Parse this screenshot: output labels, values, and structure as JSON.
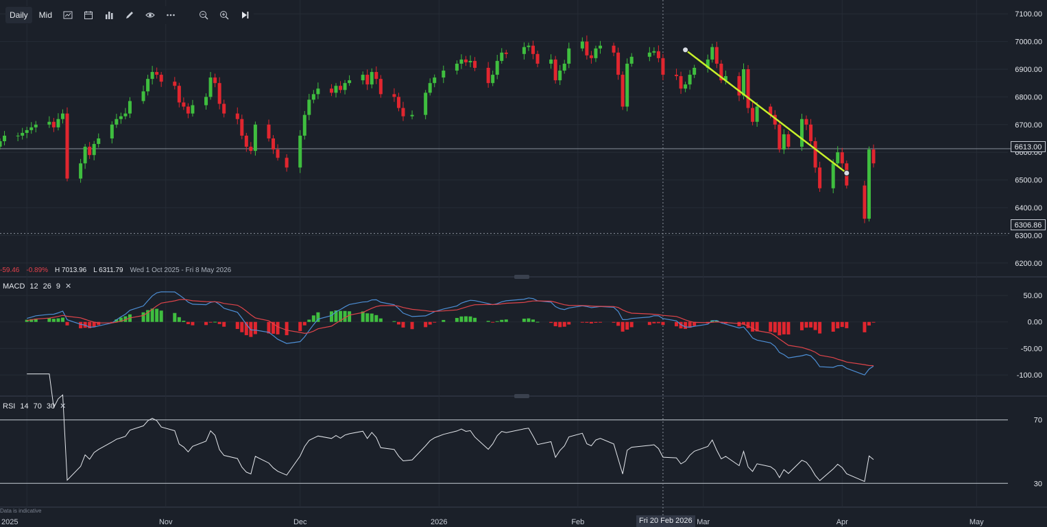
{
  "toolbar": {
    "interval_label": "Daily",
    "price_type_label": "Mid",
    "icons": [
      "chart-type-icon",
      "calendar-icon",
      "indicators-icon",
      "draw-pencil-icon",
      "eye-icon",
      "more-icon",
      "zoom-out-icon",
      "zoom-in-icon",
      "jump-to-end-icon"
    ]
  },
  "stats": {
    "change": "-59.46",
    "change_pct": "-0.89%",
    "high": "H 7013.96",
    "low": "L 6311.79",
    "range": "Wed 1 Oct 2025 - Fri 8 May 2026"
  },
  "price_tags": {
    "current": "6613.00",
    "low_line": "6306.86"
  },
  "crosshair_date": "Fri 20 Feb 2026",
  "indicative_note": "Data is indicative",
  "macd_label": {
    "name": "MACD",
    "p1": "12",
    "p2": "26",
    "p3": "9"
  },
  "rsi_label": {
    "name": "RSI",
    "p1": "14",
    "p2": "70",
    "p3": "30"
  },
  "colors": {
    "up": "#3fbe3f",
    "down": "#e0262f",
    "macd_line": "#4d8fd6",
    "signal_line": "#e0444a",
    "trendline": "#c8f02a"
  },
  "chart_data": [
    {
      "type": "candlestick",
      "ylim": [
        6150,
        7150
      ],
      "yticks": [
        "6200.00",
        "6300.00",
        "6400.00",
        "6500.00",
        "6600.00",
        "6700.00",
        "6800.00",
        "6900.00",
        "7000.00",
        "7100.00"
      ],
      "ytick_values": [
        6200,
        6300,
        6400,
        6500,
        6600,
        6700,
        6800,
        6900,
        7000,
        7100
      ],
      "xticks": [
        "2025",
        "Nov",
        "Dec",
        "2026",
        "Feb",
        "Mar",
        "Apr",
        "May"
      ],
      "xtick_dates": [
        "2025-10-01",
        "2025-11-01",
        "2025-12-01",
        "2026-01-01",
        "2026-02-01",
        "2026-03-01",
        "2026-04-01",
        "2026-05-01"
      ],
      "x_range": [
        "2025-09-25",
        "2026-05-08"
      ],
      "dates": [
        "2025-09-25",
        "2025-09-26",
        "2025-09-29",
        "2025-09-30",
        "2025-10-01",
        "2025-10-02",
        "2025-10-03",
        "2025-10-06",
        "2025-10-07",
        "2025-10-08",
        "2025-10-09",
        "2025-10-10",
        "2025-10-13",
        "2025-10-14",
        "2025-10-15",
        "2025-10-16",
        "2025-10-17",
        "2025-10-20",
        "2025-10-21",
        "2025-10-22",
        "2025-10-23",
        "2025-10-24",
        "2025-10-27",
        "2025-10-28",
        "2025-10-29",
        "2025-10-30",
        "2025-10-31",
        "2025-11-03",
        "2025-11-04",
        "2025-11-05",
        "2025-11-06",
        "2025-11-07",
        "2025-11-10",
        "2025-11-11",
        "2025-11-12",
        "2025-11-13",
        "2025-11-14",
        "2025-11-17",
        "2025-11-18",
        "2025-11-19",
        "2025-11-20",
        "2025-11-21",
        "2025-11-24",
        "2025-11-25",
        "2025-11-26",
        "2025-11-28",
        "2025-12-01",
        "2025-12-02",
        "2025-12-03",
        "2025-12-04",
        "2025-12-05",
        "2025-12-08",
        "2025-12-09",
        "2025-12-10",
        "2025-12-11",
        "2025-12-12",
        "2025-12-15",
        "2025-12-16",
        "2025-12-17",
        "2025-12-18",
        "2025-12-19",
        "2025-12-22",
        "2025-12-23",
        "2025-12-24",
        "2025-12-26",
        "2025-12-29",
        "2025-12-30",
        "2025-12-31",
        "2026-01-02",
        "2026-01-05",
        "2026-01-06",
        "2026-01-07",
        "2026-01-08",
        "2026-01-09",
        "2026-01-12",
        "2026-01-13",
        "2026-01-14",
        "2026-01-15",
        "2026-01-16",
        "2026-01-20",
        "2026-01-21",
        "2026-01-22",
        "2026-01-23",
        "2026-01-26",
        "2026-01-27",
        "2026-01-28",
        "2026-01-29",
        "2026-01-30",
        "2026-02-02",
        "2026-02-03",
        "2026-02-04",
        "2026-02-05",
        "2026-02-06",
        "2026-02-09",
        "2026-02-10",
        "2026-02-11",
        "2026-02-12",
        "2026-02-13",
        "2026-02-17",
        "2026-02-18",
        "2026-02-19",
        "2026-02-20",
        "2026-02-23",
        "2026-02-24",
        "2026-02-25",
        "2026-02-26",
        "2026-02-27",
        "2026-03-02",
        "2026-03-03",
        "2026-03-04",
        "2026-03-05",
        "2026-03-06",
        "2026-03-09",
        "2026-03-10",
        "2026-03-11",
        "2026-03-12",
        "2026-03-13",
        "2026-03-16",
        "2026-03-17",
        "2026-03-18",
        "2026-03-19",
        "2026-03-20",
        "2026-03-23",
        "2026-03-24",
        "2026-03-25",
        "2026-03-26",
        "2026-03-27",
        "2026-03-30",
        "2026-03-31",
        "2026-04-01",
        "2026-04-02",
        "2026-04-06",
        "2026-04-07",
        "2026-04-08"
      ],
      "closes": [
        6640,
        6660,
        6660,
        6670,
        6680,
        6690,
        6700,
        6710,
        6690,
        6720,
        6740,
        6505,
        6560,
        6620,
        6590,
        6630,
        6650,
        6700,
        6720,
        6730,
        6740,
        6785,
        6820,
        6865,
        6890,
        6880,
        6855,
        6840,
        6780,
        6765,
        6740,
        6770,
        6800,
        6870,
        6850,
        6775,
        6740,
        6720,
        6660,
        6620,
        6605,
        6700,
        6650,
        6610,
        6580,
        6545,
        6660,
        6735,
        6790,
        6810,
        6830,
        6815,
        6840,
        6825,
        6850,
        6860,
        6880,
        6845,
        6890,
        6865,
        6810,
        6800,
        6760,
        6730,
        6735,
        6815,
        6850,
        6870,
        6895,
        6920,
        6935,
        6925,
        6930,
        6905,
        6850,
        6880,
        6930,
        6960,
        6955,
        6980,
        6985,
        6955,
        6920,
        6935,
        6860,
        6895,
        6920,
        6975,
        7000,
        6950,
        6940,
        6975,
        6985,
        6960,
        6880,
        6765,
        6920,
        6945,
        6960,
        6965,
        6940,
        6880,
        6875,
        6830,
        6845,
        6880,
        6905,
        6935,
        6980,
        6920,
        6860,
        6875,
        6805,
        6900,
        6760,
        6710,
        6765,
        6735,
        6700,
        6610,
        6665,
        6620,
        6720,
        6700,
        6640,
        6545,
        6470,
        6560,
        6600,
        6560,
        6480,
        6360,
        6610,
        6560,
        6570,
        6610,
        6630
      ],
      "opens": [
        6620,
        6640,
        6660,
        6660,
        6670,
        6680,
        6690,
        6700,
        6710,
        6690,
        6720,
        6740,
        6505,
        6560,
        6620,
        6590,
        6630,
        6650,
        6700,
        6720,
        6730,
        6740,
        6785,
        6820,
        6865,
        6890,
        6880,
        6855,
        6840,
        6780,
        6765,
        6740,
        6770,
        6800,
        6870,
        6850,
        6775,
        6740,
        6720,
        6660,
        6620,
        6605,
        6700,
        6650,
        6610,
        6580,
        6545,
        6660,
        6735,
        6790,
        6810,
        6830,
        6815,
        6840,
        6825,
        6850,
        6860,
        6880,
        6845,
        6890,
        6865,
        6810,
        6800,
        6760,
        6730,
        6735,
        6815,
        6850,
        6870,
        6895,
        6920,
        6935,
        6925,
        6930,
        6905,
        6850,
        6880,
        6930,
        6960,
        6955,
        6980,
        6985,
        6955,
        6920,
        6935,
        6860,
        6895,
        6920,
        6975,
        7000,
        6950,
        6940,
        6975,
        6985,
        6960,
        6880,
        6765,
        6920,
        6945,
        6960,
        6965,
        6940,
        6880,
        6875,
        6830,
        6845,
        6880,
        6905,
        6935,
        6980,
        6920,
        6860,
        6875,
        6805,
        6900,
        6760,
        6710,
        6765,
        6735,
        6700,
        6610,
        6665,
        6620,
        6720,
        6700,
        6640,
        6545,
        6470,
        6560,
        6600,
        6560,
        6480,
        6360,
        6610,
        6560,
        6570,
        6610
      ]
    },
    {
      "type": "line+bar",
      "ylim": [
        -140,
        85
      ],
      "yticks": [
        "50.00",
        "0.00",
        "-50.00",
        "-100.00"
      ],
      "ytick_values": [
        50,
        0,
        -50,
        -100
      ],
      "series": [
        {
          "name": "MACD",
          "style": "line"
        },
        {
          "name": "Signal",
          "style": "line"
        },
        {
          "name": "Histogram",
          "style": "bar"
        }
      ]
    },
    {
      "type": "line",
      "ylim": [
        15,
        85
      ],
      "yticks": [
        "70",
        "30"
      ],
      "ytick_values": [
        70,
        30
      ],
      "series": [
        {
          "name": "RSI",
          "style": "line"
        }
      ]
    }
  ]
}
